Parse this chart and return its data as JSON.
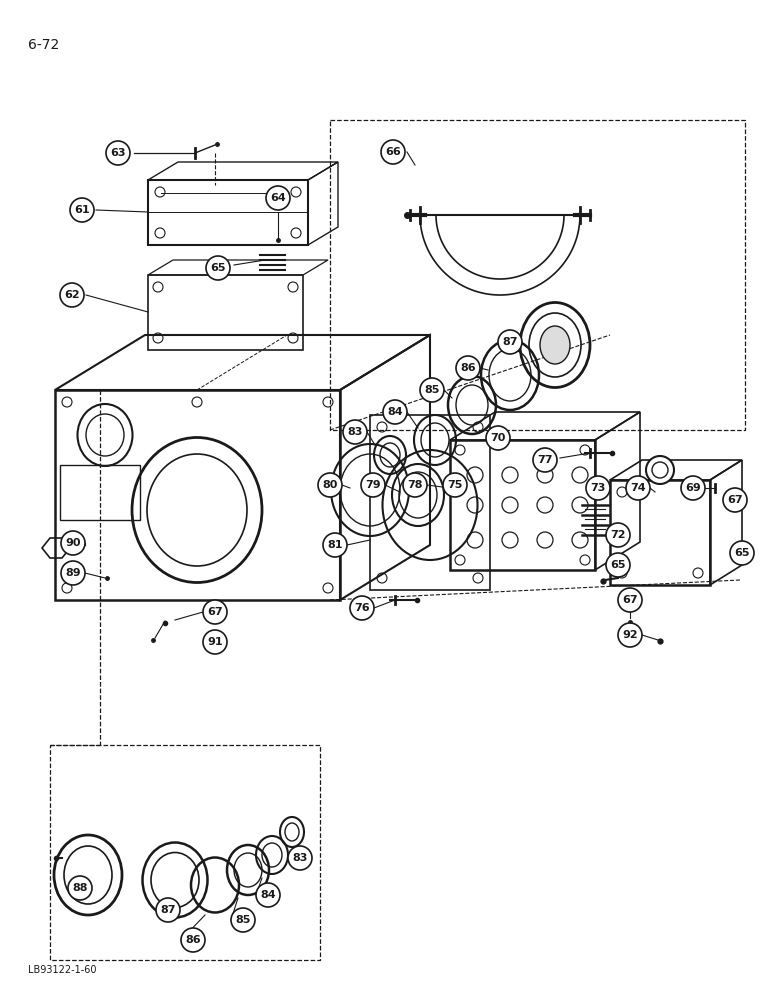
{
  "page_number": "6-72",
  "footer_text": "LB93122-1-60",
  "background_color": "#ffffff",
  "line_color": "#1a1a1a"
}
